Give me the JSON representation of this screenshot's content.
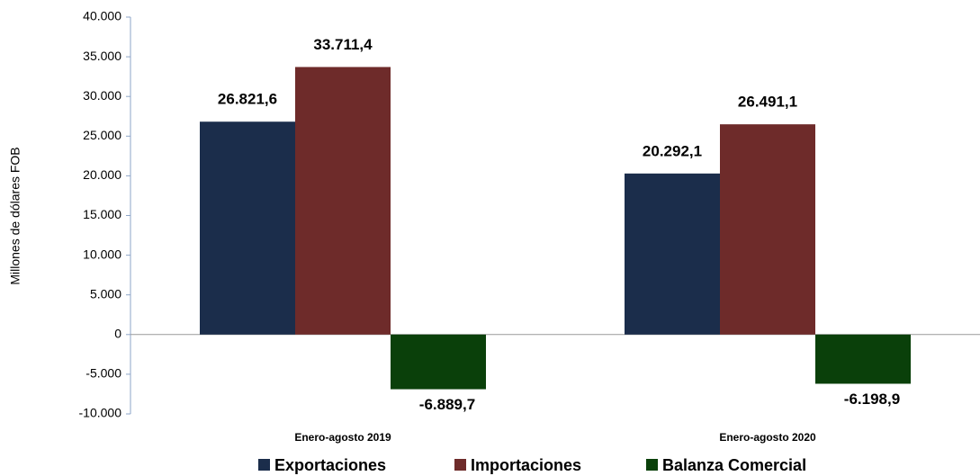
{
  "chart_data": {
    "type": "bar",
    "y_label": "Millones de dólares FOB",
    "categories": [
      "Enero-agosto 2019",
      "Enero-agosto 2020"
    ],
    "series": [
      {
        "name": "Exportaciones",
        "color": "#1b2d4b",
        "values": [
          26821.6,
          20292.1
        ],
        "value_labels": [
          "26.821,6",
          "20.292,1"
        ]
      },
      {
        "name": "Importaciones",
        "color": "#6e2b2a",
        "values": [
          33711.4,
          26491.1
        ],
        "value_labels": [
          "33.711,4",
          "26.491,1"
        ]
      },
      {
        "name": "Balanza Comercial",
        "color": "#0a400a",
        "values": [
          -6889.7,
          -6198.9
        ],
        "value_labels": [
          "-6.889,7",
          "-6.198,9"
        ]
      }
    ],
    "ylim": [
      -10000,
      40000
    ],
    "yticks": [
      {
        "value": -10000,
        "label": "-10.000"
      },
      {
        "value": -5000,
        "label": "-5.000"
      },
      0,
      {
        "value": 5000,
        "label": "5.000"
      },
      {
        "value": 10000,
        "label": "10.000"
      },
      {
        "value": 15000,
        "label": "15.000"
      },
      {
        "value": 20000,
        "label": "20.000"
      },
      {
        "value": 25000,
        "label": "25.000"
      },
      {
        "value": 30000,
        "label": "30.000"
      },
      {
        "value": 35000,
        "label": "35.000"
      },
      {
        "value": 40000,
        "label": "40.000"
      }
    ],
    "grid": false,
    "legend": "bottom"
  }
}
